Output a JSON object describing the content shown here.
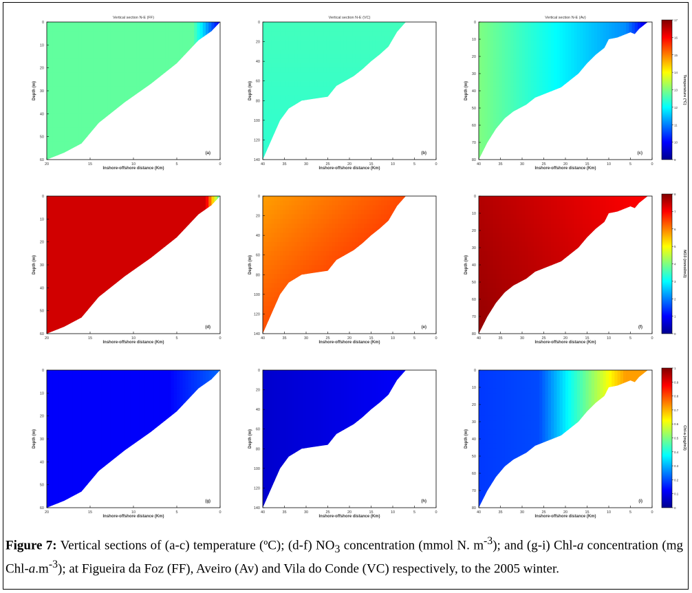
{
  "chart_data": [
    {
      "panel": "a",
      "type": "heatmap",
      "title": "Vertical section N-E (FF)",
      "xlabel": "Inshore-offshore distance (Km)",
      "ylabel": "Depth (m)",
      "tag": "(a)",
      "x_ticks": [
        "20",
        "15",
        "10",
        "5",
        "0"
      ],
      "y_ticks": [
        "0",
        "10",
        "20",
        "30",
        "40",
        "50",
        "60"
      ],
      "variable": "temperature",
      "profile": [
        [
          20,
          60
        ],
        [
          18,
          57
        ],
        [
          16,
          53
        ],
        [
          14,
          44
        ],
        [
          11,
          35
        ],
        [
          8,
          27
        ],
        [
          5,
          18
        ],
        [
          3.5,
          12
        ],
        [
          2.5,
          8
        ],
        [
          1,
          4
        ],
        [
          0,
          0
        ]
      ],
      "field": "ff"
    },
    {
      "panel": "b",
      "type": "heatmap",
      "title": "Vertical section N-E (VC)",
      "xlabel": "Inshore-offshore distance (Km)",
      "ylabel": "Depth (m)",
      "tag": "(b)",
      "x_ticks": [
        "40",
        "35",
        "30",
        "25",
        "20",
        "15",
        "10",
        "5",
        "0"
      ],
      "y_ticks": [
        "0",
        "20",
        "40",
        "60",
        "80",
        "100",
        "120",
        "140"
      ],
      "variable": "temperature",
      "profile": [
        [
          40,
          140
        ],
        [
          38,
          120
        ],
        [
          36,
          100
        ],
        [
          34,
          88
        ],
        [
          31,
          80
        ],
        [
          28,
          78
        ],
        [
          25,
          76
        ],
        [
          23,
          65
        ],
        [
          21,
          60
        ],
        [
          19,
          55
        ],
        [
          17,
          48
        ],
        [
          15,
          40
        ],
        [
          13,
          33
        ],
        [
          11,
          25
        ],
        [
          9,
          10
        ],
        [
          7,
          0
        ]
      ],
      "field": "vc"
    },
    {
      "panel": "c",
      "type": "heatmap",
      "title": "Vertical section N-E (Av)",
      "xlabel": "Inshore-offshore distance (Km)",
      "ylabel": "Depth (m)",
      "tag": "(c)",
      "x_ticks": [
        "40",
        "35",
        "30",
        "25",
        "20",
        "15",
        "10",
        "5",
        "0"
      ],
      "y_ticks": [
        "0",
        "10",
        "20",
        "30",
        "40",
        "50",
        "60",
        "70",
        "80"
      ],
      "variable": "temperature",
      "profile": [
        [
          40,
          80
        ],
        [
          38,
          70
        ],
        [
          36,
          62
        ],
        [
          34,
          56
        ],
        [
          32,
          52
        ],
        [
          29,
          48
        ],
        [
          27,
          44
        ],
        [
          25,
          42
        ],
        [
          23,
          40
        ],
        [
          21,
          38
        ],
        [
          19,
          34
        ],
        [
          17,
          30
        ],
        [
          15,
          24
        ],
        [
          13,
          19
        ],
        [
          11,
          15
        ],
        [
          10,
          10
        ],
        [
          8,
          9
        ],
        [
          6,
          7
        ],
        [
          5,
          6
        ],
        [
          4,
          7
        ],
        [
          3,
          4
        ],
        [
          2,
          2
        ],
        [
          1,
          0
        ]
      ],
      "field": "av"
    },
    {
      "panel": "d",
      "type": "heatmap",
      "title": "",
      "xlabel": "Inshore-offshore distance (Km)",
      "ylabel": "Depth (m)",
      "tag": "(d)",
      "x_ticks": [
        "20",
        "15",
        "10",
        "5",
        "0"
      ],
      "y_ticks": [
        "0",
        "10",
        "20",
        "30",
        "40",
        "50",
        "60"
      ],
      "variable": "no3",
      "profile": [
        [
          20,
          60
        ],
        [
          18,
          57
        ],
        [
          16,
          53
        ],
        [
          14,
          44
        ],
        [
          11,
          35
        ],
        [
          8,
          27
        ],
        [
          5,
          18
        ],
        [
          3.5,
          12
        ],
        [
          2.5,
          8
        ],
        [
          1,
          4
        ],
        [
          0,
          0
        ]
      ],
      "field": "ff"
    },
    {
      "panel": "e",
      "type": "heatmap",
      "title": "",
      "xlabel": "Inshore-offshore distance (Km)",
      "ylabel": "Depth (m)",
      "tag": "(e)",
      "x_ticks": [
        "40",
        "35",
        "30",
        "25",
        "20",
        "15",
        "10",
        "5",
        "0"
      ],
      "y_ticks": [
        "0",
        "20",
        "40",
        "60",
        "80",
        "100",
        "120",
        "140"
      ],
      "variable": "no3",
      "profile": [
        [
          40,
          140
        ],
        [
          38,
          120
        ],
        [
          36,
          100
        ],
        [
          34,
          88
        ],
        [
          31,
          80
        ],
        [
          28,
          78
        ],
        [
          25,
          76
        ],
        [
          23,
          65
        ],
        [
          21,
          60
        ],
        [
          19,
          55
        ],
        [
          17,
          48
        ],
        [
          15,
          40
        ],
        [
          13,
          33
        ],
        [
          11,
          25
        ],
        [
          9,
          10
        ],
        [
          7,
          0
        ]
      ],
      "field": "vc"
    },
    {
      "panel": "f",
      "type": "heatmap",
      "title": "",
      "xlabel": "Inshore-offshore distance (Km)",
      "ylabel": "Depth (m)",
      "tag": "(f)",
      "x_ticks": [
        "40",
        "35",
        "30",
        "25",
        "20",
        "15",
        "10",
        "5",
        "0"
      ],
      "y_ticks": [
        "0",
        "10",
        "20",
        "30",
        "40",
        "50",
        "60",
        "70",
        "80"
      ],
      "variable": "no3",
      "profile": [
        [
          40,
          80
        ],
        [
          38,
          70
        ],
        [
          36,
          62
        ],
        [
          34,
          56
        ],
        [
          32,
          52
        ],
        [
          29,
          48
        ],
        [
          27,
          44
        ],
        [
          25,
          42
        ],
        [
          23,
          40
        ],
        [
          21,
          38
        ],
        [
          19,
          34
        ],
        [
          17,
          30
        ],
        [
          15,
          24
        ],
        [
          13,
          19
        ],
        [
          11,
          15
        ],
        [
          10,
          10
        ],
        [
          8,
          9
        ],
        [
          6,
          7
        ],
        [
          5,
          6
        ],
        [
          4,
          7
        ],
        [
          3,
          4
        ],
        [
          2,
          2
        ],
        [
          1,
          0
        ]
      ],
      "field": "av"
    },
    {
      "panel": "g",
      "type": "heatmap",
      "title": "",
      "xlabel": "Inshore-offshore distance (Km)",
      "ylabel": "Depth (m)",
      "tag": "(g)",
      "x_ticks": [
        "20",
        "15",
        "10",
        "5",
        "0"
      ],
      "y_ticks": [
        "0",
        "10",
        "20",
        "30",
        "40",
        "50",
        "60"
      ],
      "variable": "chla",
      "profile": [
        [
          20,
          60
        ],
        [
          18,
          57
        ],
        [
          16,
          53
        ],
        [
          14,
          44
        ],
        [
          11,
          35
        ],
        [
          8,
          27
        ],
        [
          5,
          18
        ],
        [
          3.5,
          12
        ],
        [
          2.5,
          8
        ],
        [
          1,
          4
        ],
        [
          0,
          0
        ]
      ],
      "field": "ff"
    },
    {
      "panel": "h",
      "type": "heatmap",
      "title": "",
      "xlabel": "Inshore-offshore distance (Km)",
      "ylabel": "Depth (m)",
      "tag": "(h)",
      "x_ticks": [
        "40",
        "35",
        "30",
        "25",
        "20",
        "15",
        "10",
        "5",
        "0"
      ],
      "y_ticks": [
        "0",
        "20",
        "40",
        "60",
        "80",
        "100",
        "120",
        "140"
      ],
      "variable": "chla",
      "profile": [
        [
          40,
          140
        ],
        [
          38,
          120
        ],
        [
          36,
          100
        ],
        [
          34,
          88
        ],
        [
          31,
          80
        ],
        [
          28,
          78
        ],
        [
          25,
          76
        ],
        [
          23,
          65
        ],
        [
          21,
          60
        ],
        [
          19,
          55
        ],
        [
          17,
          48
        ],
        [
          15,
          40
        ],
        [
          13,
          33
        ],
        [
          11,
          25
        ],
        [
          9,
          10
        ],
        [
          7,
          0
        ]
      ],
      "field": "vc"
    },
    {
      "panel": "i",
      "type": "heatmap",
      "title": "",
      "xlabel": "Inshore-offshore distance (Km)",
      "ylabel": "Depth (m)",
      "tag": "(i)",
      "x_ticks": [
        "40",
        "35",
        "30",
        "25",
        "20",
        "15",
        "10",
        "5",
        "0"
      ],
      "y_ticks": [
        "0",
        "10",
        "20",
        "30",
        "40",
        "50",
        "60",
        "70",
        "80"
      ],
      "variable": "chla",
      "profile": [
        [
          40,
          80
        ],
        [
          38,
          70
        ],
        [
          36,
          62
        ],
        [
          34,
          56
        ],
        [
          32,
          52
        ],
        [
          29,
          48
        ],
        [
          27,
          44
        ],
        [
          25,
          42
        ],
        [
          23,
          40
        ],
        [
          21,
          38
        ],
        [
          19,
          34
        ],
        [
          17,
          30
        ],
        [
          15,
          24
        ],
        [
          13,
          19
        ],
        [
          11,
          15
        ],
        [
          10,
          10
        ],
        [
          8,
          9
        ],
        [
          6,
          7
        ],
        [
          5,
          6
        ],
        [
          4,
          7
        ],
        [
          3,
          4
        ],
        [
          2,
          2
        ],
        [
          1,
          0
        ]
      ],
      "field": "av"
    }
  ],
  "colorbars": [
    {
      "variable": "temperature",
      "label": "Temperature (ºC)",
      "ticks": [
        "17",
        "16",
        "15",
        "14",
        "13",
        "12",
        "11",
        "10",
        "9"
      ]
    },
    {
      "variable": "no3",
      "label": "NO3 (mmol/m3)",
      "ticks": [
        "8",
        "7",
        "6",
        "5",
        "4",
        "3",
        "2",
        "1",
        "0"
      ]
    },
    {
      "variable": "chla",
      "label": "Chl-a (mg/m3)",
      "ticks": [
        "1",
        "0.9",
        "0.8",
        "0.7",
        "0.6",
        "0.5",
        "0.4",
        "0.3",
        "0.2",
        "0.1",
        "0"
      ]
    }
  ],
  "caption": {
    "label": "Figure 7:",
    "p1": " Vertical sections of (a-c) temperature (ºC); (d-f) NO",
    "sub1": "3",
    "p2": " concentration (mmol N. m",
    "sup1": "-3",
    "p3": "); and (g-i) Chl-",
    "it1": "a",
    "p4": " concentration (mg Chl-",
    "it2": "a",
    "p5": ".m",
    "sup2": "-3",
    "p6": "); at Figueira da Foz (FF), Aveiro (Av) and Vila do Conde (VC) respectively, to the 2005 winter."
  }
}
